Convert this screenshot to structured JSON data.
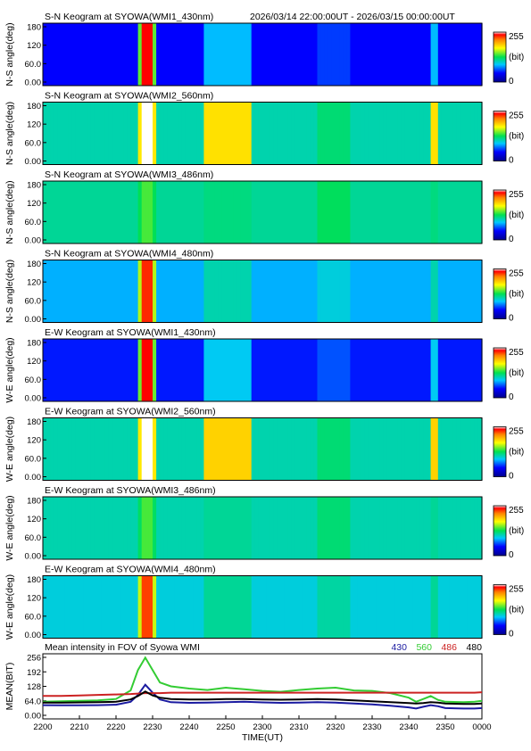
{
  "header": {
    "time_range": "2026/03/14 22:00:00UT - 2026/03/15 00:00:00UT"
  },
  "colorbar": {
    "max_label": "255",
    "unit_label": "(bit)",
    "min_label": "0"
  },
  "keogram_y_ticks": [
    "180",
    "120",
    "60.0",
    "0.00"
  ],
  "panels": [
    {
      "title": "S-N Keogram at SYOWA(WMI1_430nm)",
      "ylabel": "N-S angle(deg)",
      "baseline": 0.18,
      "aurora_peak": 0.95,
      "secondary": 0.34
    },
    {
      "title": "S-N Keogram at SYOWA(WMI2_560nm)",
      "ylabel": "N-S angle(deg)",
      "baseline": 0.42,
      "aurora_peak": 1.0,
      "secondary": 0.72
    },
    {
      "title": "S-N Keogram at SYOWA(WMI3_486nm)",
      "ylabel": "N-S angle(deg)",
      "baseline": 0.44,
      "aurora_peak": 0.55,
      "secondary": 0.46
    },
    {
      "title": "S-N Keogram at SYOWA(WMI4_480nm)",
      "ylabel": "N-S angle(deg)",
      "baseline": 0.33,
      "aurora_peak": 0.92,
      "secondary": 0.42
    },
    {
      "title": "E-W Keogram at SYOWA(WMI1_430nm)",
      "ylabel": "W-E angle(deg)",
      "baseline": 0.2,
      "aurora_peak": 0.95,
      "secondary": 0.36
    },
    {
      "title": "E-W Keogram at SYOWA(WMI2_560nm)",
      "ylabel": "W-E angle(deg)",
      "baseline": 0.42,
      "aurora_peak": 1.0,
      "secondary": 0.74
    },
    {
      "title": "E-W Keogram at SYOWA(WMI3_486nm)",
      "ylabel": "W-E angle(deg)",
      "baseline": 0.42,
      "aurora_peak": 0.55,
      "secondary": 0.44
    },
    {
      "title": "E-W Keogram at SYOWA(WMI4_480nm)",
      "ylabel": "W-E angle(deg)",
      "baseline": 0.38,
      "aurora_peak": 0.9,
      "secondary": 0.44
    }
  ],
  "chart_data": {
    "type": "line",
    "title": "Mean intensity in FOV of Syowa WMI",
    "ylabel": "MEAN(BIT)",
    "xlabel": "TIME(UT)",
    "ylim": [
      0,
      256
    ],
    "y_ticks": [
      "256",
      "192",
      "128",
      "64.0",
      "0.00"
    ],
    "x_ticks": [
      "2200",
      "2210",
      "2220",
      "2230",
      "2240",
      "2250",
      "2300",
      "2310",
      "2320",
      "2330",
      "2340",
      "2350",
      "0000"
    ],
    "x": [
      0,
      5,
      10,
      15,
      20,
      24,
      26,
      28,
      30,
      32,
      35,
      40,
      45,
      50,
      55,
      60,
      65,
      70,
      75,
      80,
      85,
      90,
      95,
      100,
      102,
      104,
      106,
      108,
      110,
      115,
      118,
      120
    ],
    "series": [
      {
        "name": "430",
        "color": "#1a1aa0",
        "values": [
          45,
          44,
          44,
          45,
          47,
          60,
          90,
          135,
          100,
          70,
          58,
          55,
          56,
          58,
          60,
          57,
          55,
          56,
          58,
          56,
          52,
          48,
          42,
          35,
          30,
          38,
          45,
          40,
          32,
          30,
          30,
          32
        ]
      },
      {
        "name": "560",
        "color": "#33cc33",
        "values": [
          60,
          62,
          64,
          66,
          72,
          110,
          200,
          255,
          200,
          145,
          128,
          118,
          112,
          122,
          115,
          108,
          104,
          112,
          118,
          122,
          110,
          108,
          98,
          78,
          60,
          72,
          85,
          68,
          60,
          58,
          60,
          64
        ]
      },
      {
        "name": "486",
        "color": "#cc2222",
        "values": [
          86,
          86,
          88,
          90,
          92,
          94,
          96,
          98,
          98,
          98,
          100,
          100,
          100,
          100,
          100,
          100,
          100,
          100,
          100,
          100,
          100,
          100,
          100,
          100,
          100,
          100,
          100,
          100,
          100,
          100,
          100,
          102
        ]
      },
      {
        "name": "480",
        "color": "#000000",
        "values": [
          56,
          56,
          57,
          58,
          60,
          70,
          85,
          105,
          88,
          78,
          72,
          70,
          70,
          72,
          72,
          70,
          69,
          70,
          72,
          70,
          66,
          62,
          58,
          54,
          52,
          54,
          58,
          56,
          52,
          50,
          50,
          52
        ]
      }
    ]
  }
}
